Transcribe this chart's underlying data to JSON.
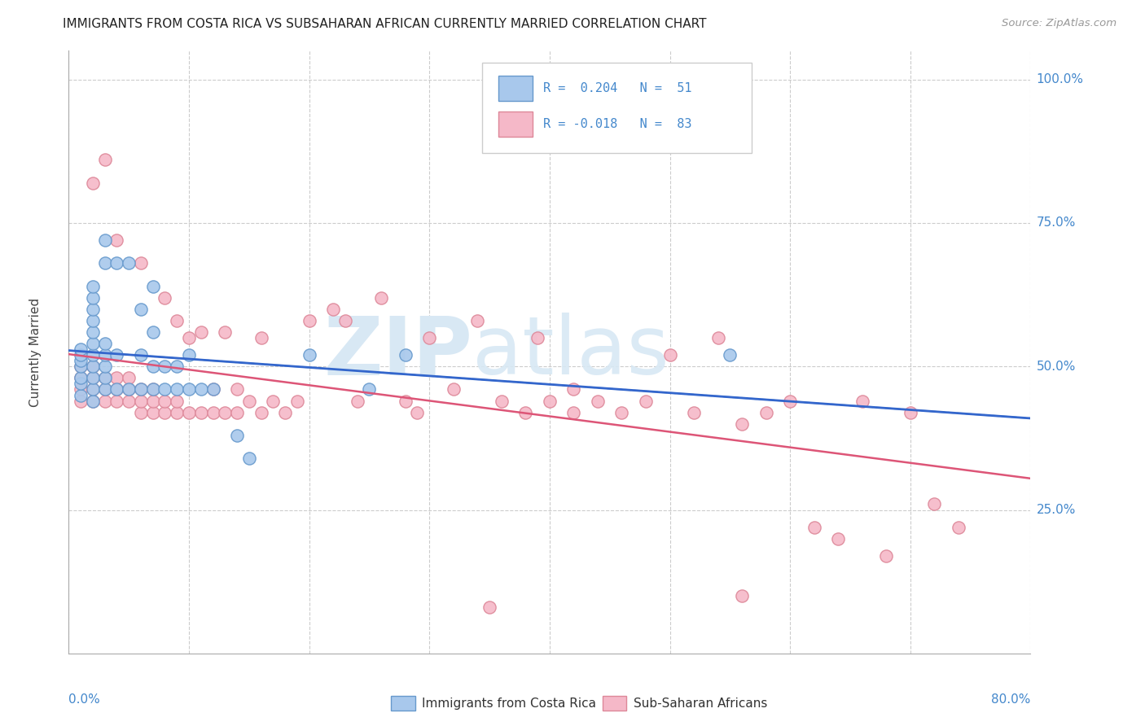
{
  "title": "IMMIGRANTS FROM COSTA RICA VS SUBSAHARAN AFRICAN CURRENTLY MARRIED CORRELATION CHART",
  "source": "Source: ZipAtlas.com",
  "ylabel": "Currently Married",
  "xmin": 0.0,
  "xmax": 0.8,
  "ymin": 0.0,
  "ymax": 1.05,
  "blue_color": "#A8C8EC",
  "blue_edge_color": "#6699CC",
  "pink_color": "#F5B8C8",
  "pink_edge_color": "#DD8899",
  "blue_line_color": "#3366CC",
  "pink_line_color": "#DD5577",
  "dashed_line_color": "#99BBDD",
  "grid_color": "#CCCCCC",
  "right_label_color": "#4488CC",
  "watermark_color": "#D8E8F4",
  "cr_x": [
    0.01,
    0.01,
    0.01,
    0.01,
    0.01,
    0.01,
    0.01,
    0.02,
    0.02,
    0.02,
    0.02,
    0.02,
    0.02,
    0.02,
    0.02,
    0.02,
    0.02,
    0.02,
    0.03,
    0.03,
    0.03,
    0.03,
    0.03,
    0.03,
    0.03,
    0.04,
    0.04,
    0.04,
    0.05,
    0.05,
    0.06,
    0.06,
    0.06,
    0.07,
    0.07,
    0.07,
    0.07,
    0.08,
    0.08,
    0.09,
    0.09,
    0.1,
    0.1,
    0.11,
    0.12,
    0.14,
    0.15,
    0.2,
    0.25,
    0.28,
    0.55
  ],
  "cr_y": [
    0.45,
    0.47,
    0.48,
    0.5,
    0.51,
    0.52,
    0.53,
    0.44,
    0.46,
    0.48,
    0.5,
    0.52,
    0.54,
    0.56,
    0.58,
    0.6,
    0.62,
    0.64,
    0.46,
    0.48,
    0.5,
    0.52,
    0.54,
    0.68,
    0.72,
    0.46,
    0.52,
    0.68,
    0.46,
    0.68,
    0.46,
    0.52,
    0.6,
    0.46,
    0.5,
    0.56,
    0.64,
    0.46,
    0.5,
    0.46,
    0.5,
    0.46,
    0.52,
    0.46,
    0.46,
    0.38,
    0.34,
    0.52,
    0.46,
    0.52,
    0.52
  ],
  "ss_x": [
    0.01,
    0.01,
    0.01,
    0.01,
    0.02,
    0.02,
    0.02,
    0.02,
    0.02,
    0.03,
    0.03,
    0.03,
    0.03,
    0.04,
    0.04,
    0.04,
    0.04,
    0.05,
    0.05,
    0.05,
    0.06,
    0.06,
    0.06,
    0.06,
    0.07,
    0.07,
    0.07,
    0.08,
    0.08,
    0.08,
    0.09,
    0.09,
    0.09,
    0.1,
    0.1,
    0.11,
    0.11,
    0.12,
    0.12,
    0.13,
    0.13,
    0.14,
    0.14,
    0.15,
    0.16,
    0.16,
    0.17,
    0.18,
    0.19,
    0.2,
    0.22,
    0.23,
    0.24,
    0.26,
    0.28,
    0.29,
    0.3,
    0.32,
    0.34,
    0.36,
    0.38,
    0.39,
    0.4,
    0.42,
    0.44,
    0.46,
    0.48,
    0.5,
    0.52,
    0.54,
    0.56,
    0.58,
    0.6,
    0.62,
    0.64,
    0.66,
    0.68,
    0.7,
    0.72,
    0.74,
    0.35,
    0.42,
    0.56
  ],
  "ss_y": [
    0.44,
    0.46,
    0.48,
    0.5,
    0.44,
    0.46,
    0.48,
    0.5,
    0.82,
    0.44,
    0.46,
    0.48,
    0.86,
    0.44,
    0.46,
    0.48,
    0.72,
    0.44,
    0.46,
    0.48,
    0.42,
    0.44,
    0.46,
    0.68,
    0.42,
    0.44,
    0.46,
    0.42,
    0.44,
    0.62,
    0.42,
    0.44,
    0.58,
    0.42,
    0.55,
    0.42,
    0.56,
    0.42,
    0.46,
    0.42,
    0.56,
    0.42,
    0.46,
    0.44,
    0.42,
    0.55,
    0.44,
    0.42,
    0.44,
    0.58,
    0.6,
    0.58,
    0.44,
    0.62,
    0.44,
    0.42,
    0.55,
    0.46,
    0.58,
    0.44,
    0.42,
    0.55,
    0.44,
    0.42,
    0.44,
    0.42,
    0.44,
    0.52,
    0.42,
    0.55,
    0.4,
    0.42,
    0.44,
    0.22,
    0.2,
    0.44,
    0.17,
    0.42,
    0.26,
    0.22,
    0.08,
    0.46,
    0.1
  ]
}
